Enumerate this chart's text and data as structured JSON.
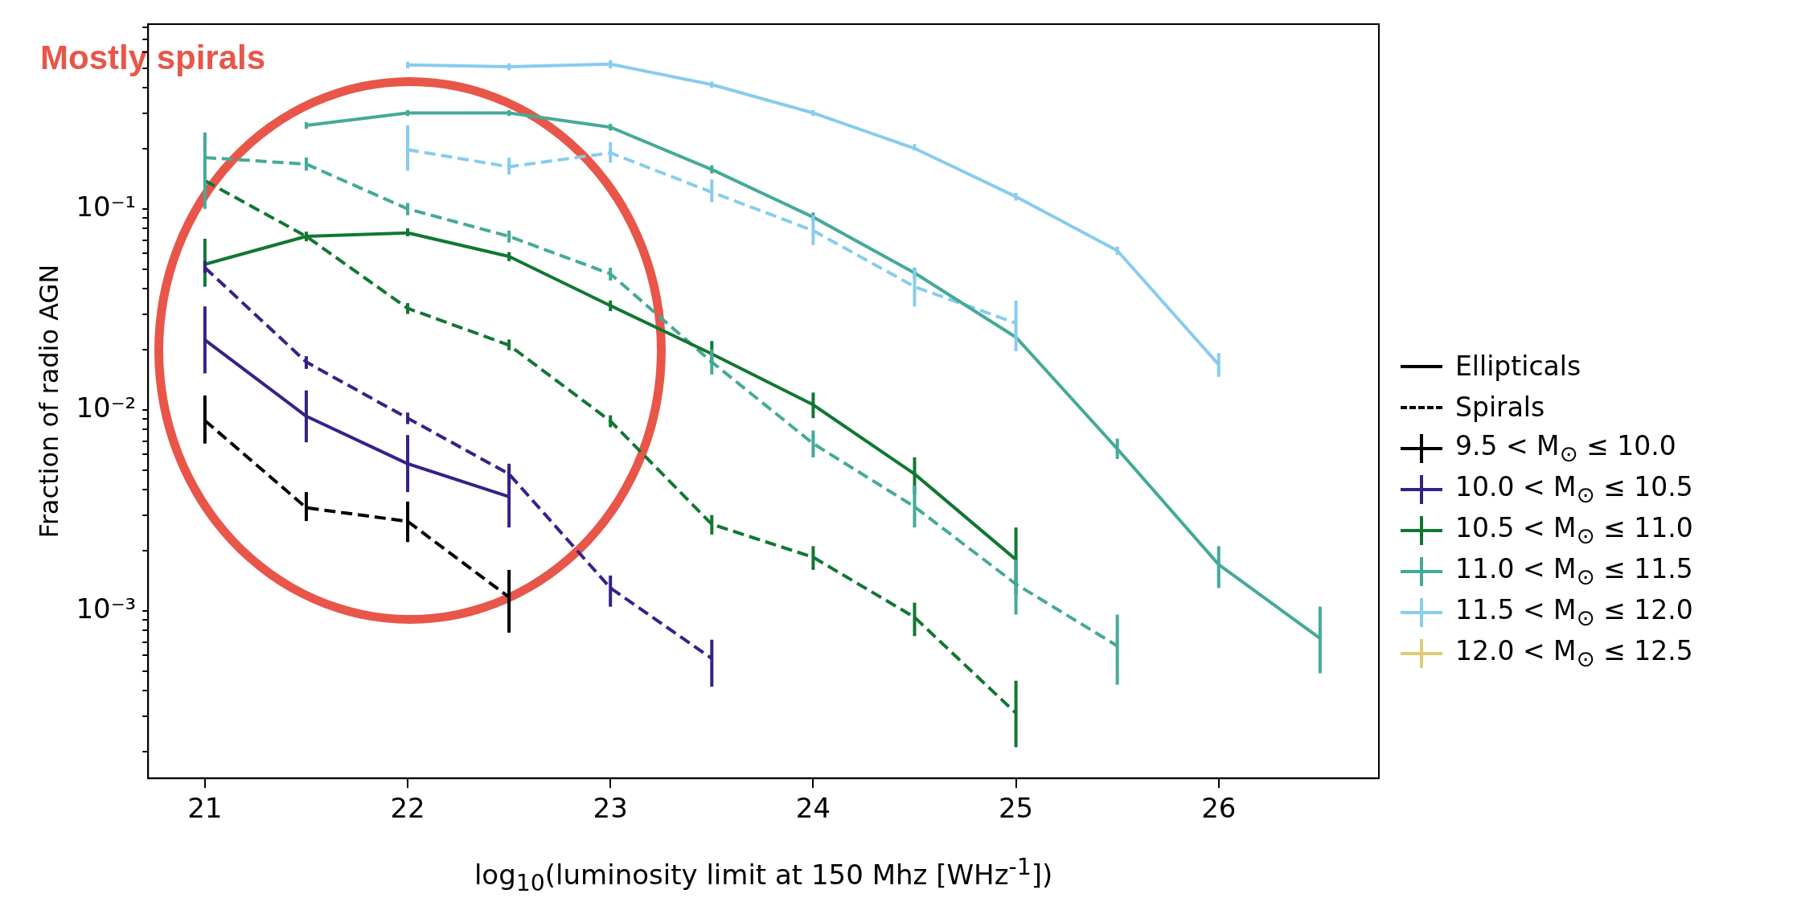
{
  "chart_data": {
    "type": "line",
    "xlabel": "log$_{10}$(luminosity limit at 150 Mhz [WHz$^{-1}$])",
    "ylabel": "Fraction of radio AGN",
    "annotations": [
      "Mostly spirals"
    ],
    "x": [
      21,
      21.5,
      22,
      22.5,
      23,
      23.5,
      24,
      24.5,
      25,
      25.5,
      26,
      26.5
    ],
    "log": "y",
    "xlim": [
      20.72,
      26.79
    ],
    "ylim": [
      0.000147,
      0.83
    ],
    "xticks": [
      21,
      22,
      23,
      24,
      25,
      26
    ],
    "yticks": [
      {
        "value": 0.0002,
        "label": null
      },
      {
        "value": 0.0003,
        "label": null
      },
      {
        "value": 0.0004,
        "label": null
      },
      {
        "value": 0.0005,
        "label": null
      },
      {
        "value": 0.0006,
        "label": null
      },
      {
        "value": 0.0007,
        "label": null
      },
      {
        "value": 0.0008,
        "label": null
      },
      {
        "value": 0.0009,
        "label": null
      },
      {
        "value": 0.001,
        "label": "10⁻³"
      },
      {
        "value": 0.002,
        "label": null
      },
      {
        "value": 0.003,
        "label": null
      },
      {
        "value": 0.004,
        "label": null
      },
      {
        "value": 0.005,
        "label": null
      },
      {
        "value": 0.006,
        "label": null
      },
      {
        "value": 0.007,
        "label": null
      },
      {
        "value": 0.008,
        "label": null
      },
      {
        "value": 0.009,
        "label": null
      },
      {
        "value": 0.01,
        "label": "10⁻²"
      },
      {
        "value": 0.02,
        "label": null
      },
      {
        "value": 0.03,
        "label": null
      },
      {
        "value": 0.04,
        "label": null
      },
      {
        "value": 0.05,
        "label": null
      },
      {
        "value": 0.06,
        "label": null
      },
      {
        "value": 0.07,
        "label": null
      },
      {
        "value": 0.08,
        "label": null
      },
      {
        "value": 0.09,
        "label": null
      },
      {
        "value": 0.1,
        "label": "10⁻¹"
      },
      {
        "value": 0.2,
        "label": null
      },
      {
        "value": 0.3,
        "label": null
      },
      {
        "value": 0.4,
        "label": null
      },
      {
        "value": 0.5,
        "label": null
      },
      {
        "value": 0.6,
        "label": null
      },
      {
        "value": 0.7,
        "label": null
      },
      {
        "value": 0.8,
        "label": null
      }
    ],
    "grid": false,
    "legend": "right",
    "marker": "none",
    "series": [
      {
        "name": "Ellipticals",
        "color": "#000000",
        "line_style": "solid",
        "values": [
          null,
          null,
          null,
          null,
          null,
          null,
          null,
          null,
          null,
          null,
          null,
          null
        ]
      },
      {
        "name": "Spirals",
        "color": "#000000",
        "line_style": "dashed",
        "values": [
          null,
          null,
          null,
          null,
          null,
          null,
          null,
          null,
          null,
          null,
          null,
          null
        ]
      },
      {
        "name": "9.5 < M$_{⊙}$ ≤ 10.0",
        "color": "#000000",
        "line_style": "dashed",
        "values": [
          0.00885,
          0.00326,
          0.00279,
          0.00117,
          null,
          null,
          null,
          null,
          null,
          null,
          null,
          null
        ],
        "errors": [
          [
            0.0068,
            0.0118
          ],
          [
            0.0028,
            0.0039
          ],
          [
            0.0022,
            0.0035
          ],
          [
            0.00078,
            0.0016
          ],
          null,
          null,
          null,
          null,
          null,
          null,
          null,
          null
        ]
      },
      {
        "name": "10.0 < M$_{⊙}$ ≤ 10.5",
        "color": "#332288",
        "line_style": "solid",
        "values": [
          0.0223,
          0.0093,
          0.0054,
          0.0037,
          null,
          null,
          null,
          null,
          null,
          null,
          null,
          null
        ],
        "errors": [
          [
            0.0152,
            0.0327
          ],
          [
            0.0069,
            0.0125
          ],
          [
            0.0039,
            0.0075
          ],
          [
            0.0026,
            0.0051
          ],
          null,
          null,
          null,
          null,
          null,
          null,
          null,
          null
        ]
      },
      {
        "name": "10.5 < M$_{⊙}$ ≤ 11.0",
        "color": "#117733",
        "line_style": "solid",
        "values": [
          0.053,
          0.073,
          0.076,
          0.058,
          0.033,
          0.019,
          0.0106,
          0.0048,
          0.0018,
          null,
          null,
          null
        ],
        "errors": [
          [
            0.041,
            0.071
          ],
          [
            0.069,
            0.077
          ],
          [
            0.073,
            0.08
          ],
          [
            0.055,
            0.061
          ],
          [
            0.031,
            0.035
          ],
          [
            0.017,
            0.022
          ],
          [
            0.0091,
            0.0122
          ],
          [
            0.0038,
            0.0058
          ],
          [
            0.0012,
            0.0026
          ],
          null,
          null,
          null
        ]
      },
      {
        "name": "11.0 < M$_{⊙}$ ≤ 11.5",
        "color": "#44aa99",
        "line_style": "solid",
        "values": [
          null,
          0.26,
          0.3,
          0.3,
          0.255,
          0.157,
          0.091,
          0.048,
          0.023,
          0.0064,
          0.0017,
          0.00073
        ],
        "errors": [
          null,
          [
            0.25,
            0.27
          ],
          [
            0.29,
            0.31
          ],
          [
            0.29,
            0.31
          ],
          [
            0.245,
            0.265
          ],
          [
            0.15,
            0.165
          ],
          [
            0.087,
            0.096
          ],
          [
            0.045,
            0.051
          ],
          null,
          [
            0.0057,
            0.0072
          ],
          [
            0.0013,
            0.0021
          ],
          [
            0.00049,
            0.00105
          ]
        ]
      },
      {
        "name": "11.5 < M$_{⊙}$ ≤ 12.0",
        "color": "#88ccee",
        "line_style": "solid",
        "values": [
          null,
          null,
          0.52,
          0.51,
          0.525,
          0.415,
          0.3,
          0.2,
          0.115,
          0.062,
          0.0168,
          null
        ],
        "errors": [
          null,
          null,
          [
            0.5,
            0.54
          ],
          [
            0.49,
            0.53
          ],
          [
            0.5,
            0.55
          ],
          [
            0.4,
            0.43
          ],
          [
            0.29,
            0.31
          ],
          [
            0.195,
            0.21
          ],
          [
            0.11,
            0.12
          ],
          [
            0.059,
            0.065
          ],
          [
            0.0146,
            0.0192
          ],
          null
        ]
      },
      {
        "name": "12.0 < M$_{⊙}$ ≤ 12.5",
        "color": "#ddcc77",
        "line_style": "solid",
        "values": [
          null,
          null,
          null,
          null,
          null,
          null,
          null,
          null,
          null,
          null,
          null,
          null
        ],
        "errors": [
          null,
          null,
          null,
          null,
          null,
          null,
          null,
          null,
          null,
          null,
          null,
          null
        ]
      },
      {
        "color": "#332288",
        "line_style": "dashed",
        "values": [
          0.051,
          0.0173,
          0.0091,
          0.0048,
          0.0013,
          0.00058,
          null,
          null,
          null,
          null,
          null,
          null
        ],
        "errors": [
          [
            0.048,
            0.055
          ],
          [
            0.016,
            0.0185
          ],
          [
            0.0085,
            0.0097
          ],
          [
            0.0042,
            0.0054
          ],
          [
            0.00105,
            0.0015
          ],
          [
            0.00042,
            0.00072
          ],
          null,
          null,
          null,
          null,
          null,
          null
        ]
      },
      {
        "color": "#117733",
        "line_style": "dashed",
        "values": [
          0.138,
          0.073,
          0.032,
          0.021,
          0.0088,
          0.0027,
          0.00185,
          0.00093,
          0.00031,
          null,
          null,
          null
        ],
        "errors": [
          null,
          null,
          [
            0.03,
            0.034
          ],
          [
            0.0198,
            0.0224
          ],
          [
            0.0082,
            0.0094
          ],
          [
            0.0024,
            0.003
          ],
          [
            0.0016,
            0.0021
          ],
          [
            0.00075,
            0.0011
          ],
          [
            0.00021,
            0.00045
          ],
          null,
          null,
          null
        ]
      },
      {
        "color": "#44aa99",
        "line_style": "dashed",
        "values": [
          0.18,
          0.167,
          0.1,
          0.073,
          0.0475,
          0.0173,
          0.0068,
          0.0033,
          0.00136,
          0.00067,
          null,
          null
        ],
        "errors": [
          [
            0.1,
            0.24
          ],
          [
            0.155,
            0.18
          ],
          [
            0.093,
            0.107
          ],
          [
            0.068,
            0.078
          ],
          [
            0.044,
            0.051
          ],
          [
            0.015,
            0.02
          ],
          [
            0.0058,
            0.0079
          ],
          [
            0.0026,
            0.0042
          ],
          [
            0.00096,
            0.0018
          ],
          [
            0.00043,
            0.00096
          ],
          null,
          null
        ]
      },
      {
        "color": "#88ccee",
        "line_style": "dashed",
        "values": [
          null,
          null,
          0.197,
          0.162,
          0.19,
          0.121,
          0.078,
          0.041,
          0.027,
          null,
          null,
          null
        ],
        "errors": [
          null,
          null,
          [
            0.155,
            0.26
          ],
          [
            0.148,
            0.18
          ],
          [
            0.17,
            0.215
          ],
          [
            0.108,
            0.14
          ],
          [
            0.066,
            0.093
          ],
          [
            0.0327,
            0.0507
          ],
          [
            0.0196,
            0.035
          ],
          null,
          null,
          null
        ]
      }
    ]
  }
}
